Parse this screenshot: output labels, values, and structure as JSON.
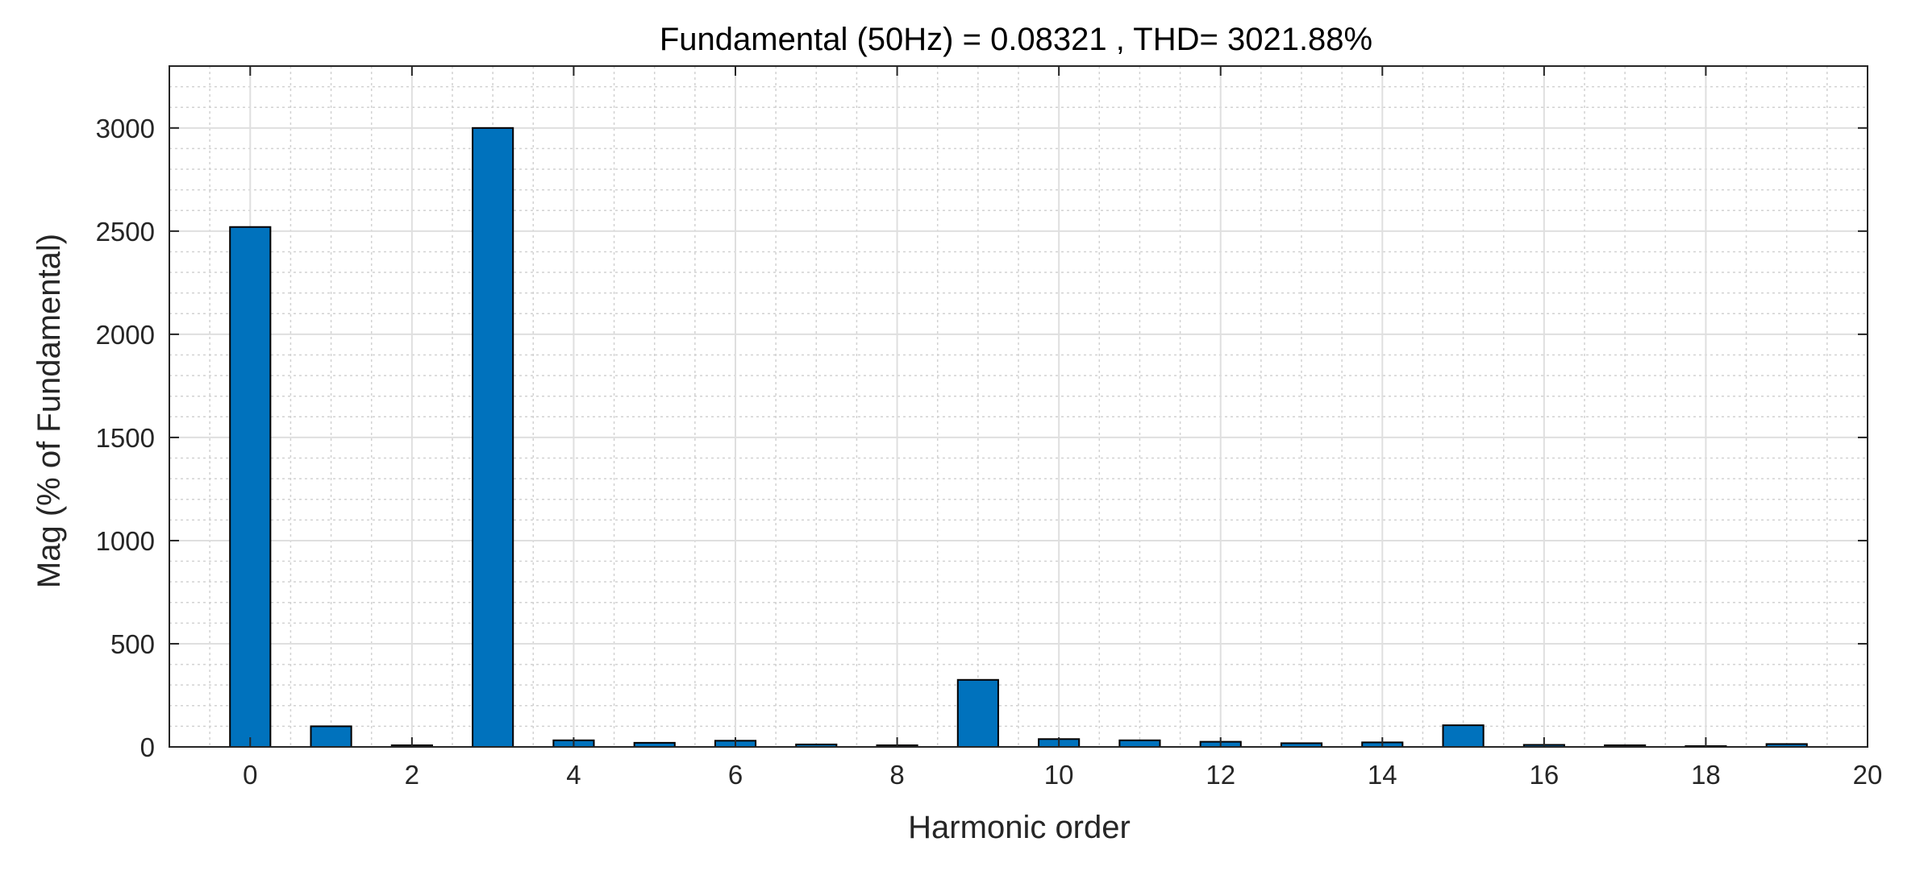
{
  "chart_data": {
    "type": "bar",
    "title": "Fundamental (50Hz) = 0.08321 , THD= 3021.88%",
    "xlabel": "Harmonic order",
    "ylabel": "Mag (% of Fundamental)",
    "xlim": [
      -1,
      20
    ],
    "ylim": [
      0,
      3300
    ],
    "xticks": [
      0,
      2,
      4,
      6,
      8,
      10,
      12,
      14,
      16,
      18,
      20
    ],
    "yticks": [
      0,
      500,
      1000,
      1500,
      2000,
      2500,
      3000
    ],
    "xtick_labels": [
      "0",
      "2",
      "4",
      "6",
      "8",
      "10",
      "12",
      "14",
      "16",
      "18",
      "20"
    ],
    "ytick_labels": [
      "0",
      "500",
      "1000",
      "1500",
      "2000",
      "2500",
      "3000"
    ],
    "grid": true,
    "minor_grid": true,
    "x": [
      0,
      1,
      2,
      3,
      4,
      5,
      6,
      7,
      8,
      9,
      10,
      11,
      12,
      13,
      14,
      15,
      16,
      17,
      18,
      19
    ],
    "values": [
      2520,
      100,
      8,
      3000,
      32,
      20,
      30,
      12,
      8,
      325,
      38,
      32,
      25,
      18,
      22,
      105,
      10,
      8,
      4,
      14
    ],
    "colors": {
      "bar_fill": "#0072BD",
      "bar_edge": "#000000",
      "grid_major": "#DFDFDF",
      "grid_minor": "#D2D2D2",
      "axis": "#262626"
    }
  }
}
